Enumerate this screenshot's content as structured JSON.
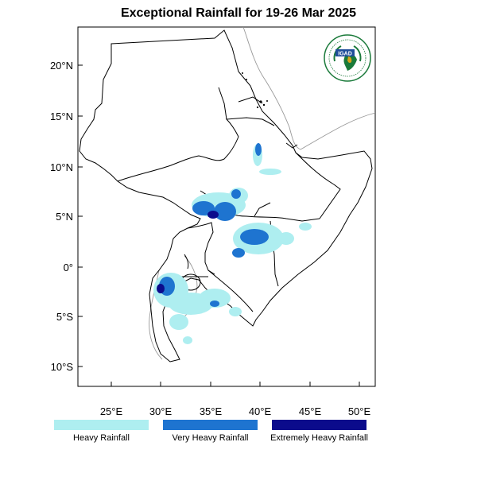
{
  "title": "Exceptional Rainfall for 19-26 Mar 2025",
  "logo": {
    "text": "IGAD",
    "colors": {
      "ring": "#1a7a3a",
      "blue": "#1f4e9a",
      "gold": "#d9a21a"
    }
  },
  "axes": {
    "lon_ticks": [
      "25°E",
      "30°E",
      "35°E",
      "40°E",
      "45°E",
      "50°E"
    ],
    "lat_ticks": [
      "20°N",
      "15°N",
      "10°N",
      "5°N",
      "0°",
      "5°S",
      "10°S"
    ]
  },
  "legend": [
    {
      "label": "Heavy Rainfall",
      "color": "#aeeef0"
    },
    {
      "label": "Very Heavy Rainfall",
      "color": "#1e74d0"
    },
    {
      "label": "Extremely Heavy Rainfall",
      "color": "#0b0b8c"
    }
  ]
}
